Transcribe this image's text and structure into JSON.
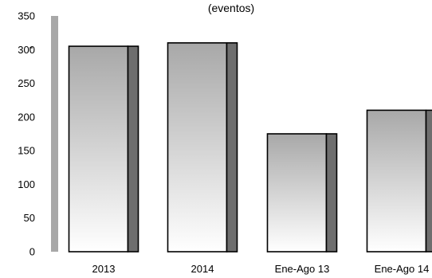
{
  "chart_data": {
    "type": "bar",
    "title": "(eventos)",
    "categories": [
      "2013",
      "2014",
      "Ene-Ago 13",
      "Ene-Ago 14"
    ],
    "values": [
      305,
      310,
      175,
      210
    ],
    "ylim": [
      0,
      350
    ],
    "yticks": [
      "0",
      "50",
      "100",
      "150",
      "200",
      "250",
      "300",
      "350"
    ],
    "grid": false,
    "legend": "none",
    "style": "3d-gradient",
    "colors": {
      "bar_top": "#a8a8a8",
      "bar_bottom": "#ffffff",
      "bar_side": "#6e6e6e",
      "bar_outline": "#000000",
      "wall": "#a8a8a8"
    }
  }
}
